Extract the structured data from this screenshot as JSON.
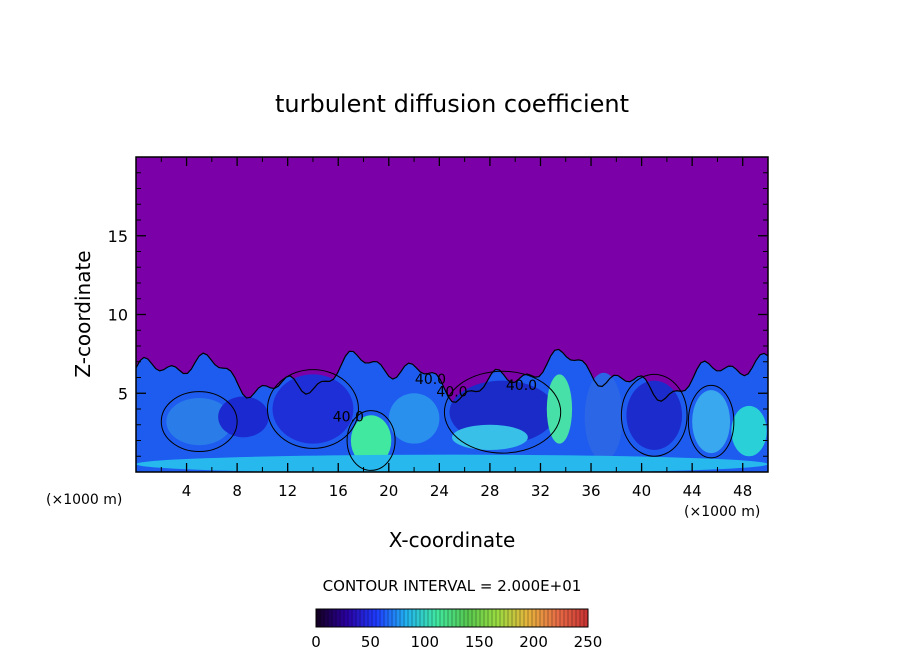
{
  "chart_data": {
    "type": "heatmap",
    "title": "turbulent diffusion coefficient",
    "xlabel": "X-coordinate",
    "ylabel": "Z-coordinate",
    "x_unit_left": "(×1000 m)",
    "x_unit_right": "(×1000 m)",
    "xlim": [
      0,
      50
    ],
    "ylim": [
      0,
      20
    ],
    "xticks": [
      4,
      8,
      12,
      16,
      20,
      24,
      28,
      32,
      36,
      40,
      44,
      48
    ],
    "yticks": [
      5,
      10,
      15
    ],
    "contour_interval_text": "CONTOUR INTERVAL = 2.000E+01",
    "contour_labels": [
      {
        "text": "40.0",
        "x": 23.3,
        "y": 5.6
      },
      {
        "text": "40.0",
        "x": 25.0,
        "y": 4.8
      },
      {
        "text": "40.0",
        "x": 30.5,
        "y": 5.2
      },
      {
        "text": "40.0",
        "x": 16.8,
        "y": 3.2
      }
    ],
    "colorbar": {
      "min": 0,
      "max": 250,
      "ticks": [
        0,
        50,
        100,
        150,
        200,
        250
      ],
      "colors": [
        "#14001e",
        "#2a00a0",
        "#1e3cff",
        "#22b4f0",
        "#40e8a0",
        "#56c850",
        "#9adc40",
        "#e6b43c",
        "#e86c46",
        "#c83232"
      ]
    },
    "background_value_color": "#7c00a8",
    "turbulent_layer_top_km": 7.5
  }
}
